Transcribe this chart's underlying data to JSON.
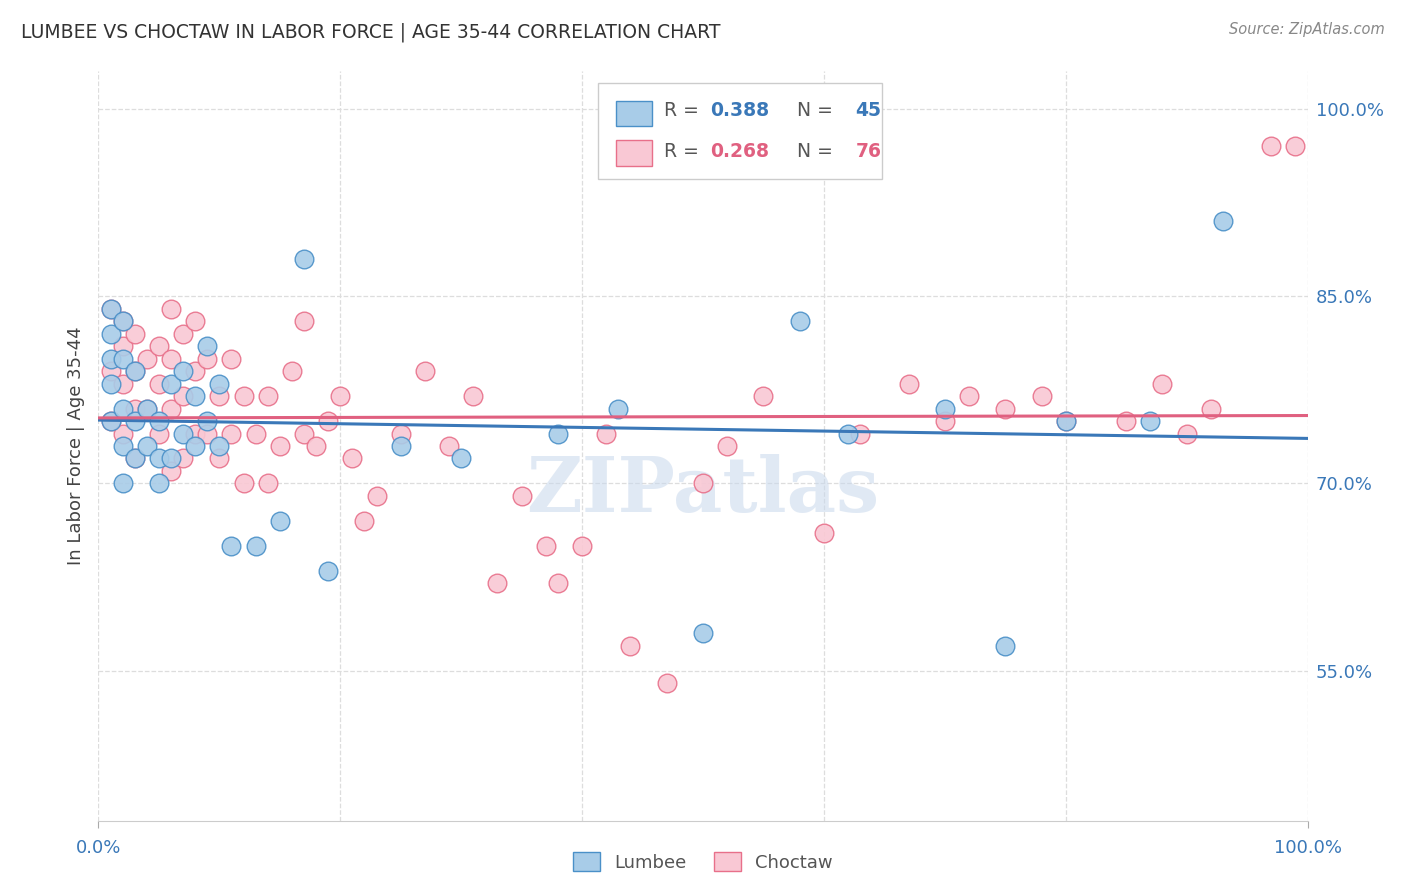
{
  "title": "LUMBEE VS CHOCTAW IN LABOR FORCE | AGE 35-44 CORRELATION CHART",
  "source": "Source: ZipAtlas.com",
  "ylabel": "In Labor Force | Age 35-44",
  "xlim": [
    0.0,
    1.0
  ],
  "ylim": [
    0.43,
    1.03
  ],
  "ytick_labels_right": [
    "55.0%",
    "70.0%",
    "85.0%",
    "100.0%"
  ],
  "ytick_vals_right": [
    0.55,
    0.7,
    0.85,
    1.0
  ],
  "lumbee_R": 0.388,
  "lumbee_N": 45,
  "choctaw_R": 0.268,
  "choctaw_N": 76,
  "lumbee_color": "#a8cce8",
  "choctaw_color": "#f9c8d4",
  "lumbee_edge_color": "#4a90c8",
  "choctaw_edge_color": "#e8708a",
  "lumbee_line_color": "#3a78b8",
  "choctaw_line_color": "#e06080",
  "background_color": "#ffffff",
  "grid_color": "#dddddd",
  "watermark": "ZIPatlas",
  "lumbee_x": [
    0.01,
    0.01,
    0.01,
    0.01,
    0.01,
    0.02,
    0.02,
    0.02,
    0.02,
    0.02,
    0.03,
    0.03,
    0.03,
    0.04,
    0.04,
    0.05,
    0.05,
    0.05,
    0.06,
    0.06,
    0.07,
    0.07,
    0.08,
    0.08,
    0.09,
    0.09,
    0.1,
    0.1,
    0.11,
    0.13,
    0.15,
    0.17,
    0.19,
    0.25,
    0.3,
    0.38,
    0.43,
    0.5,
    0.58,
    0.62,
    0.7,
    0.75,
    0.8,
    0.87,
    0.93
  ],
  "lumbee_y": [
    0.84,
    0.82,
    0.8,
    0.78,
    0.75,
    0.83,
    0.8,
    0.76,
    0.73,
    0.7,
    0.79,
    0.75,
    0.72,
    0.76,
    0.73,
    0.72,
    0.75,
    0.7,
    0.78,
    0.72,
    0.79,
    0.74,
    0.77,
    0.73,
    0.81,
    0.75,
    0.73,
    0.78,
    0.65,
    0.65,
    0.67,
    0.88,
    0.63,
    0.73,
    0.72,
    0.74,
    0.76,
    0.58,
    0.83,
    0.74,
    0.76,
    0.57,
    0.75,
    0.75,
    0.91
  ],
  "choctaw_x": [
    0.01,
    0.01,
    0.01,
    0.02,
    0.02,
    0.02,
    0.02,
    0.03,
    0.03,
    0.03,
    0.03,
    0.04,
    0.04,
    0.05,
    0.05,
    0.05,
    0.06,
    0.06,
    0.06,
    0.06,
    0.07,
    0.07,
    0.07,
    0.08,
    0.08,
    0.08,
    0.09,
    0.09,
    0.1,
    0.1,
    0.11,
    0.11,
    0.12,
    0.12,
    0.13,
    0.14,
    0.14,
    0.15,
    0.16,
    0.17,
    0.17,
    0.18,
    0.19,
    0.2,
    0.21,
    0.22,
    0.23,
    0.25,
    0.27,
    0.29,
    0.31,
    0.33,
    0.35,
    0.37,
    0.38,
    0.4,
    0.42,
    0.44,
    0.47,
    0.5,
    0.52,
    0.55,
    0.6,
    0.63,
    0.67,
    0.7,
    0.72,
    0.75,
    0.78,
    0.8,
    0.85,
    0.88,
    0.9,
    0.92,
    0.97,
    0.99
  ],
  "choctaw_y": [
    0.84,
    0.79,
    0.75,
    0.83,
    0.81,
    0.78,
    0.74,
    0.82,
    0.79,
    0.76,
    0.72,
    0.8,
    0.76,
    0.81,
    0.78,
    0.74,
    0.84,
    0.8,
    0.76,
    0.71,
    0.82,
    0.77,
    0.72,
    0.83,
    0.79,
    0.74,
    0.8,
    0.74,
    0.77,
    0.72,
    0.8,
    0.74,
    0.77,
    0.7,
    0.74,
    0.77,
    0.7,
    0.73,
    0.79,
    0.83,
    0.74,
    0.73,
    0.75,
    0.77,
    0.72,
    0.67,
    0.69,
    0.74,
    0.79,
    0.73,
    0.77,
    0.62,
    0.69,
    0.65,
    0.62,
    0.65,
    0.74,
    0.57,
    0.54,
    0.7,
    0.73,
    0.77,
    0.66,
    0.74,
    0.78,
    0.75,
    0.77,
    0.76,
    0.77,
    0.75,
    0.75,
    0.78,
    0.74,
    0.76,
    0.97,
    0.97
  ]
}
